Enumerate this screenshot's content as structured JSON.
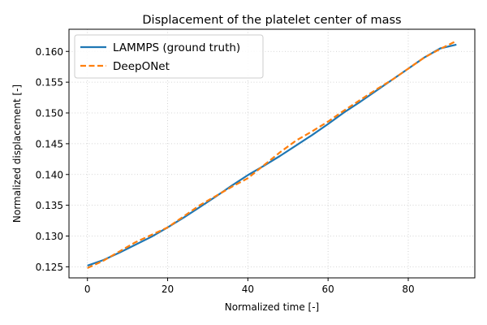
{
  "chart_data": {
    "type": "line",
    "title": "Displacement of the platelet center of mass",
    "xlabel": "Normalized time [-]",
    "ylabel": "Normalized displacement [-]",
    "xlim": [
      -4.6,
      96.6
    ],
    "ylim": [
      0.1232,
      0.1636
    ],
    "xticks": [
      0,
      20,
      40,
      60,
      80
    ],
    "xtick_labels": [
      "0",
      "20",
      "40",
      "60",
      "80"
    ],
    "yticks": [
      0.125,
      0.13,
      0.135,
      0.14,
      0.145,
      0.15,
      0.155,
      0.16
    ],
    "ytick_labels": [
      "0.125",
      "0.130",
      "0.135",
      "0.140",
      "0.145",
      "0.150",
      "0.155",
      "0.160"
    ],
    "grid": true,
    "legend_position": "top-left",
    "series": [
      {
        "name": "LAMMPS (ground truth)",
        "color": "#1f77b4",
        "style": "solid",
        "x": [
          0,
          4,
          8,
          12,
          16,
          20,
          24,
          28,
          32,
          36,
          40,
          44,
          48,
          52,
          56,
          60,
          64,
          68,
          72,
          76,
          80,
          84,
          88,
          92
        ],
        "y": [
          0.1252,
          0.1261,
          0.1273,
          0.1286,
          0.1299,
          0.1314,
          0.133,
          0.1347,
          0.1364,
          0.1382,
          0.1399,
          0.1414,
          0.143,
          0.1447,
          0.1464,
          0.1482,
          0.1501,
          0.1518,
          0.1536,
          0.1554,
          0.1572,
          0.159,
          0.1605,
          0.1611
        ]
      },
      {
        "name": "DeepONet",
        "color": "#ff7f0e",
        "style": "dashed",
        "x": [
          0,
          4,
          8,
          12,
          16,
          20,
          24,
          28,
          32,
          36,
          40,
          44,
          48,
          52,
          56,
          60,
          64,
          68,
          72,
          76,
          80,
          84,
          88,
          92
        ],
        "y": [
          0.1248,
          0.126,
          0.1275,
          0.129,
          0.1302,
          0.1314,
          0.1332,
          0.135,
          0.1365,
          0.138,
          0.1394,
          0.1415,
          0.1436,
          0.1455,
          0.147,
          0.1486,
          0.1504,
          0.1521,
          0.1538,
          0.1554,
          0.1572,
          0.159,
          0.1604,
          0.1617
        ]
      }
    ]
  }
}
